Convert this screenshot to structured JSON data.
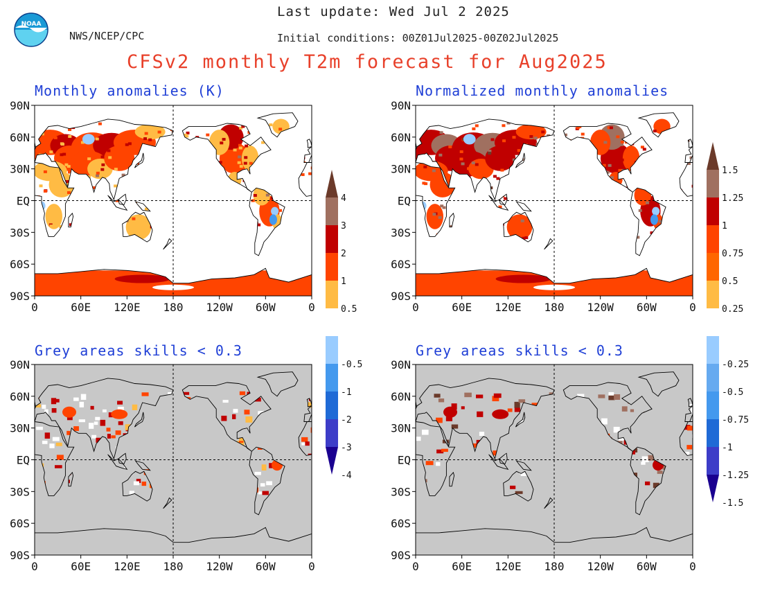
{
  "header": {
    "last_update": "Last update: Wed Jul 2 2025",
    "org": "NWS/NCEP/CPC",
    "initial_conditions": "Initial conditions: 00Z01Jul2025-00Z02Jul2025",
    "title": "CFSv2 monthly T2m forecast for Aug2025",
    "logo_text": "NOAA"
  },
  "axes": {
    "lat_labels": [
      "90N",
      "60N",
      "30N",
      "EQ",
      "30S",
      "60S",
      "90S"
    ],
    "lon_labels": [
      "0",
      "60E",
      "120E",
      "180",
      "120W",
      "60W",
      "0"
    ]
  },
  "panels": [
    {
      "id": "anom",
      "title": "Monthly anomalies (K)",
      "masked": false
    },
    {
      "id": "norm",
      "title": "Normalized monthly anomalies",
      "masked": false
    },
    {
      "id": "anom-skill",
      "title": "Grey areas skills < 0.3",
      "masked": true
    },
    {
      "id": "norm-skill",
      "title": "Grey areas skills < 0.3",
      "masked": true
    }
  ],
  "colorbars": [
    {
      "id": "anom-bar",
      "labels": [
        "4",
        "3",
        "2",
        "1",
        "0.5",
        "-0.5",
        "-1",
        "-2",
        "-3",
        "-4"
      ]
    },
    {
      "id": "norm-bar",
      "labels": [
        "1.5",
        "1.25",
        "1",
        "0.75",
        "0.5",
        "0.25",
        "-0.25",
        "-0.5",
        "-0.75",
        "-1",
        "-1.25",
        "-1.5"
      ]
    }
  ],
  "colors": {
    "warm": [
      "#ffbb44",
      "#ff4400",
      "#c00000",
      "#a07060",
      "#6b3a2a"
    ],
    "cool": [
      "#99ccff",
      "#4499ee",
      "#1f6ad6",
      "#3d3dc8",
      "#1a0090"
    ],
    "neutral": "#ffffff",
    "grey_mask": "#c8c8c8",
    "title_red": "#e8402a",
    "title_blue": "#1f3fd6"
  }
}
